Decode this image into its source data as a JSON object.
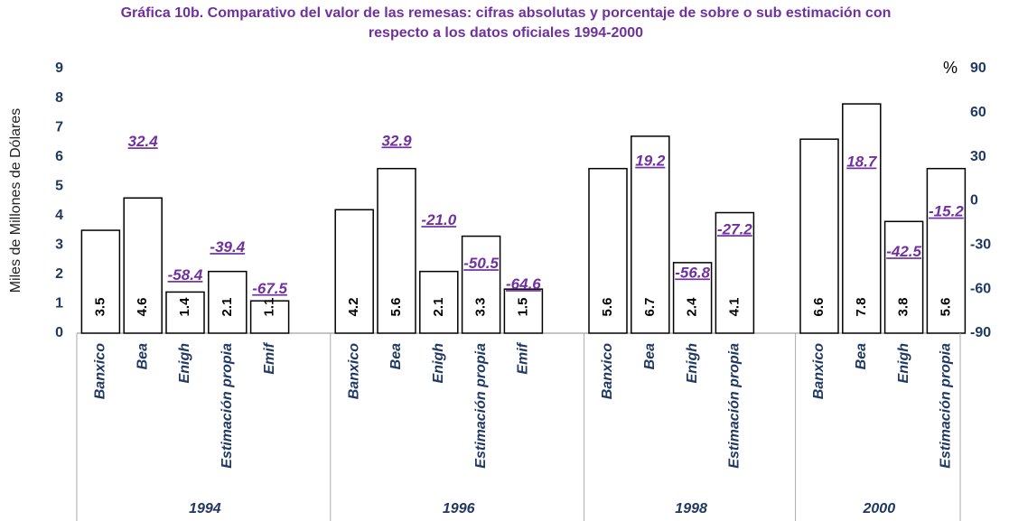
{
  "chart_data": {
    "type": "bar",
    "title": "Gráfica 10b. Comparativo del valor  de las remesas: cifras absolutas  y porcentaje de sobre o sub estimación con respecto  a los datos oficiales  1994-2000",
    "y_label": "Miles de Millones de Dólares",
    "y2_label": "%",
    "ylim": [
      0,
      9
    ],
    "yticks": [
      0,
      1,
      2,
      3,
      4,
      5,
      6,
      7,
      8,
      9
    ],
    "y2lim": [
      -90,
      90
    ],
    "y2ticks": [
      -90,
      -60,
      -30,
      0,
      30,
      60,
      90
    ],
    "bar_color": "#ffffff",
    "pct_color": "#7030a0",
    "groups": [
      {
        "label": "1994",
        "categories": [
          "Banxico",
          "Bea",
          "Enigh",
          "Estimación propia",
          "Emif"
        ],
        "values": [
          3.5,
          4.6,
          1.4,
          2.1,
          1.1
        ],
        "pct": [
          null,
          32.4,
          -58.4,
          -39.4,
          -67.5
        ],
        "pct_value_labels": [
          null,
          "32.4",
          "-58.4",
          "-39.4",
          "-67.5"
        ]
      },
      {
        "label": "1996",
        "categories": [
          "Banxico",
          "Bea",
          "Enigh",
          "Estimación propia",
          "Emif"
        ],
        "values": [
          4.2,
          5.6,
          2.1,
          3.3,
          1.5
        ],
        "pct": [
          null,
          32.9,
          -21.0,
          -50.5,
          -64.6
        ],
        "pct_value_labels": [
          null,
          "32.9",
          "-21.0",
          "-50.5",
          "-64.6"
        ]
      },
      {
        "label": "1998",
        "categories": [
          "Banxico",
          "Bea",
          "Enigh",
          "Estimación propia"
        ],
        "values": [
          5.6,
          6.7,
          2.4,
          4.1
        ],
        "pct": [
          null,
          19.2,
          -56.8,
          -27.2
        ],
        "pct_value_labels": [
          null,
          "19.2",
          "-56.8",
          "-27.2"
        ]
      },
      {
        "label": "2000",
        "categories": [
          "Banxico",
          "Bea",
          "Enigh",
          "Estimación propia"
        ],
        "values": [
          6.6,
          7.8,
          3.8,
          5.6
        ],
        "pct": [
          null,
          18.7,
          -42.5,
          -15.2
        ],
        "pct_value_labels": [
          null,
          "18.7",
          "-42.5",
          "-15.2"
        ]
      }
    ]
  }
}
